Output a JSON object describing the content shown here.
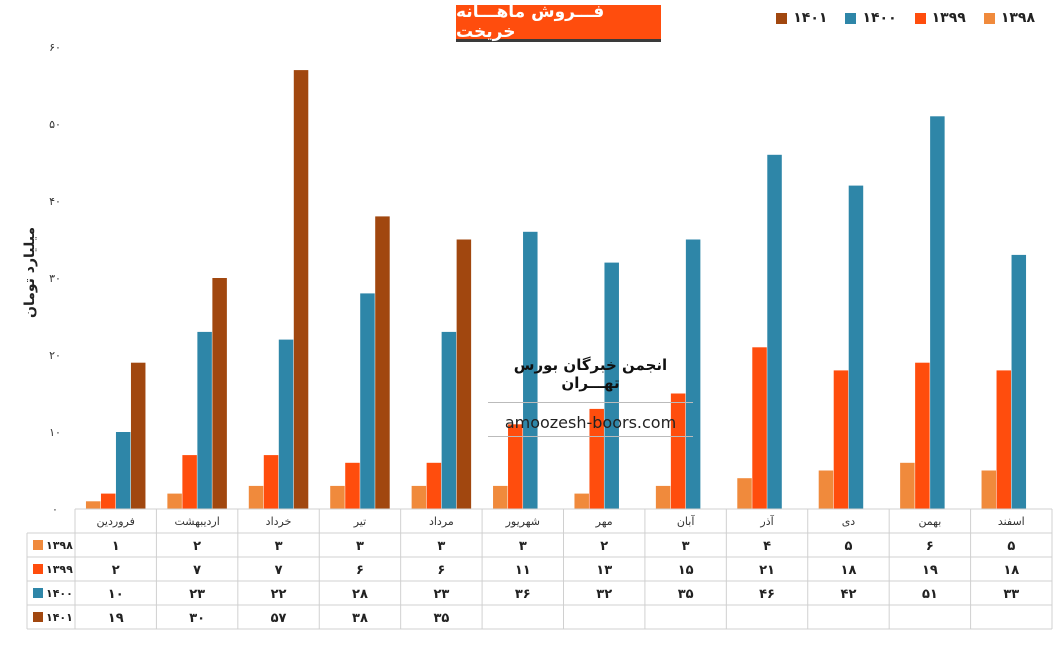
{
  "chart_data": {
    "type": "bar",
    "title": "فـــروش ماهـــانه خریخت",
    "ylabel": "میلیارد تومان",
    "xlabel": "",
    "ylim": [
      0,
      60
    ],
    "yticks": [
      "۰",
      "۱۰",
      "۲۰",
      "۳۰",
      "۴۰",
      "۵۰",
      "۶۰"
    ],
    "categories": [
      "فروردین",
      "اردیبهشت",
      "خرداد",
      "تیر",
      "مرداد",
      "شهریور",
      "مهر",
      "آبان",
      "آذر",
      "دی",
      "بهمن",
      "اسفند"
    ],
    "series": [
      {
        "name": "۱۳۹۸",
        "color": "#f08a3c",
        "values": [
          1,
          2,
          3,
          3,
          3,
          3,
          2,
          3,
          4,
          5,
          6,
          5
        ],
        "labels": [
          "۱",
          "۲",
          "۳",
          "۳",
          "۳",
          "۳",
          "۲",
          "۳",
          "۴",
          "۵",
          "۶",
          "۵"
        ]
      },
      {
        "name": "۱۳۹۹",
        "color": "#ff4d0d",
        "values": [
          2,
          7,
          7,
          6,
          6,
          11,
          13,
          15,
          21,
          18,
          19,
          18
        ],
        "labels": [
          "۲",
          "۷",
          "۷",
          "۶",
          "۶",
          "۱۱",
          "۱۳",
          "۱۵",
          "۲۱",
          "۱۸",
          "۱۹",
          "۱۸"
        ]
      },
      {
        "name": "۱۴۰۰",
        "color": "#2e86a8",
        "values": [
          10,
          23,
          22,
          28,
          23,
          36,
          32,
          35,
          46,
          42,
          51,
          33
        ],
        "labels": [
          "۱۰",
          "۲۳",
          "۲۲",
          "۲۸",
          "۲۳",
          "۳۶",
          "۳۲",
          "۳۵",
          "۴۶",
          "۴۲",
          "۵۱",
          "۳۳"
        ]
      },
      {
        "name": "۱۴۰۱",
        "color": "#a1470f",
        "values": [
          19,
          30,
          57,
          38,
          35,
          null,
          null,
          null,
          null,
          null,
          null,
          null
        ],
        "labels": [
          "۱۹",
          "۳۰",
          "۵۷",
          "۳۸",
          "۳۵",
          "",
          "",
          "",
          "",
          "",
          "",
          ""
        ]
      }
    ],
    "legend_position": "top-right",
    "grid": false,
    "data_table": true
  },
  "watermark": {
    "line1": "انجمن خبرگان بورس تهـــران",
    "line2": "amoozesh-boors.com"
  }
}
